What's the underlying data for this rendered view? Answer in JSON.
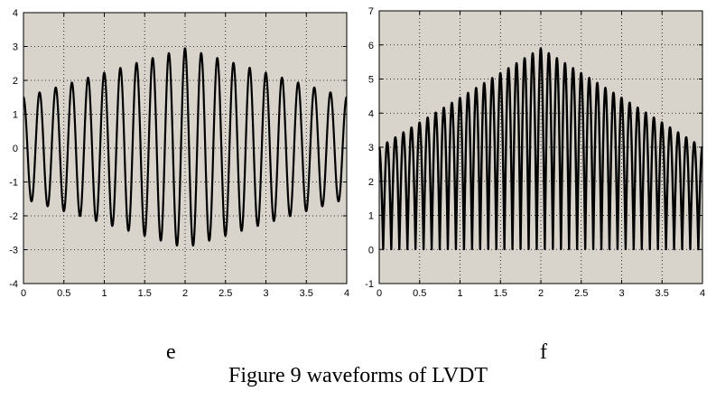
{
  "figure": {
    "caption": "Figure 9 waveforms of LVDT"
  },
  "chart_data": [
    {
      "type": "line",
      "label": "e",
      "xlim": [
        0,
        4
      ],
      "ylim": [
        -4,
        4
      ],
      "xticks": [
        "0",
        "0.5",
        "1",
        "1.5",
        "2",
        "2.5",
        "3",
        "3.5",
        "4"
      ],
      "yticks": [
        "-4",
        "-3",
        "-2",
        "-1",
        "0",
        "1",
        "2",
        "3",
        "4"
      ],
      "grid": true,
      "background": "#d8d4cc",
      "line_color": "#000000",
      "series": [
        {
          "signal": "amplitude-modulated sine",
          "carrier_cycles": 20,
          "amplitude_at_x0": 1.5,
          "amplitude_at_x2": 2.95,
          "amplitude_at_x4": 1.5,
          "envelope": "linear rise to peak at x=2 then linear fall"
        }
      ]
    },
    {
      "type": "line",
      "label": "f",
      "xlim": [
        0,
        4
      ],
      "ylim": [
        -1,
        7
      ],
      "xticks": [
        "0",
        "0.5",
        "1",
        "1.5",
        "2",
        "2.5",
        "3",
        "3.5",
        "4"
      ],
      "yticks": [
        "-1",
        "0",
        "1",
        "2",
        "3",
        "4",
        "5",
        "6",
        "7"
      ],
      "grid": true,
      "background": "#d8d4cc",
      "line_color": "#000000",
      "series": [
        {
          "signal": "full-wave rectified amplitude-modulated sine",
          "carrier_cycles": 20,
          "amplitude_at_x0": 3.0,
          "amplitude_at_x2": 5.9,
          "amplitude_at_x4": 3.0,
          "envelope": "linear rise to peak at x=2 then linear fall"
        }
      ]
    }
  ]
}
